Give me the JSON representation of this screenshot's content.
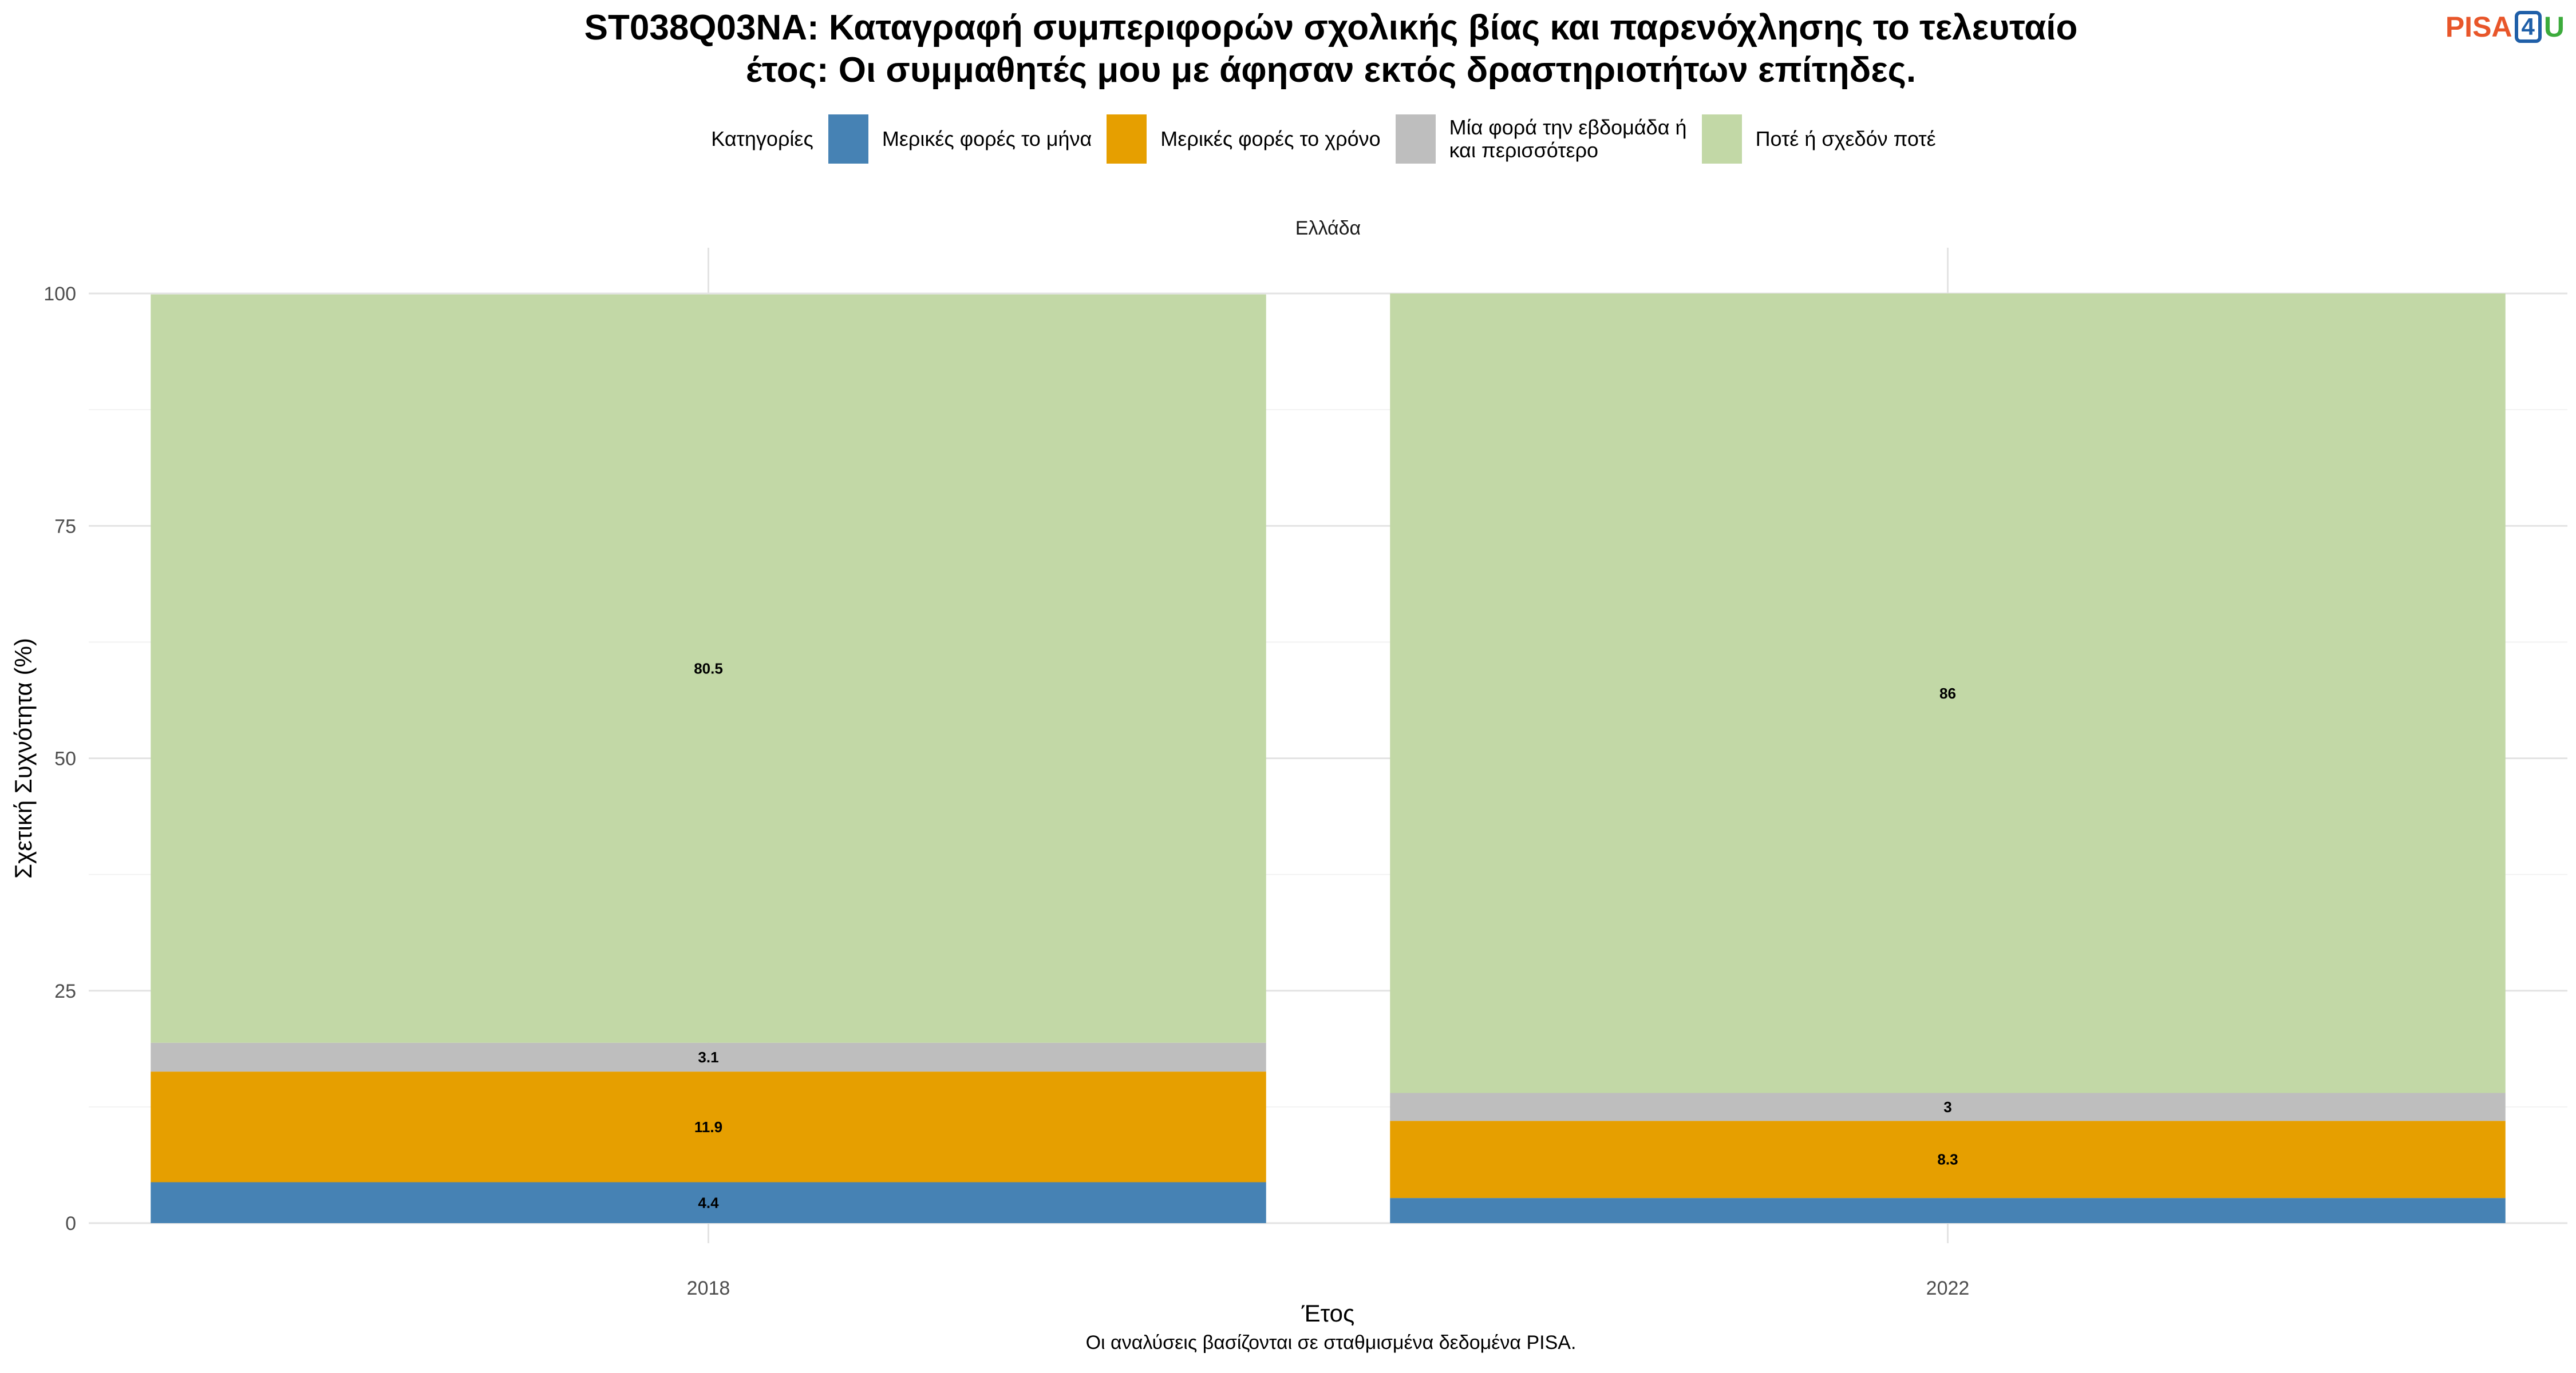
{
  "title_line1": "ST038Q03NA: Καταγραφή συμπεριφορών σχολικής βίας και παρενόχλησης το τελευταίο",
  "title_line2": "έτος: Οι συμμαθητές μου με άφησαν εκτός δραστηριοτήτων επίτηδες.",
  "logo": {
    "pisa": "PISA",
    "four": "4",
    "u": "U"
  },
  "legend": {
    "title": "Κατηγορίες",
    "items": [
      {
        "label": "Μερικές φορές το μήνα",
        "color": "#4682b4"
      },
      {
        "label": "Μερικές φορές το χρόνο",
        "color": "#e69f00"
      },
      {
        "label": "Μία φορά την εβδομάδα ή\nκαι περισσότερο",
        "color": "#bebebe"
      },
      {
        "label": "Ποτέ ή σχεδόν ποτέ",
        "color": "#c2d8a6"
      }
    ]
  },
  "caption": "Οι αναλύσεις βασίζονται σε σταθμισμένα δεδομένα PISA.",
  "chart_data": {
    "type": "bar",
    "stacked": true,
    "facet_label": "Ελλάδα",
    "categories": [
      "2018",
      "2022"
    ],
    "xlabel": "Έτος",
    "ylabel": "Σχετική Συχνότητα (%)",
    "ylim": [
      0,
      100
    ],
    "yticks": [
      0,
      25,
      50,
      75,
      100
    ],
    "grid": true,
    "legend_position": "top",
    "series": [
      {
        "name": "Μερικές φορές το μήνα",
        "color": "#4682b4",
        "values": [
          4.4,
          2.7
        ],
        "labels": [
          "4.4",
          ""
        ]
      },
      {
        "name": "Μερικές φορές το χρόνο",
        "color": "#e69f00",
        "values": [
          11.9,
          8.3
        ],
        "labels": [
          "11.9",
          "8.3"
        ]
      },
      {
        "name": "Μία φορά την εβδομάδα ή και περισσότερο",
        "color": "#bebebe",
        "values": [
          3.1,
          3.0
        ],
        "labels": [
          "3.1",
          "3"
        ]
      },
      {
        "name": "Ποτέ ή σχεδόν ποτέ",
        "color": "#c2d8a6",
        "values": [
          80.5,
          86.0
        ],
        "labels": [
          "80.5",
          "86"
        ]
      }
    ]
  }
}
